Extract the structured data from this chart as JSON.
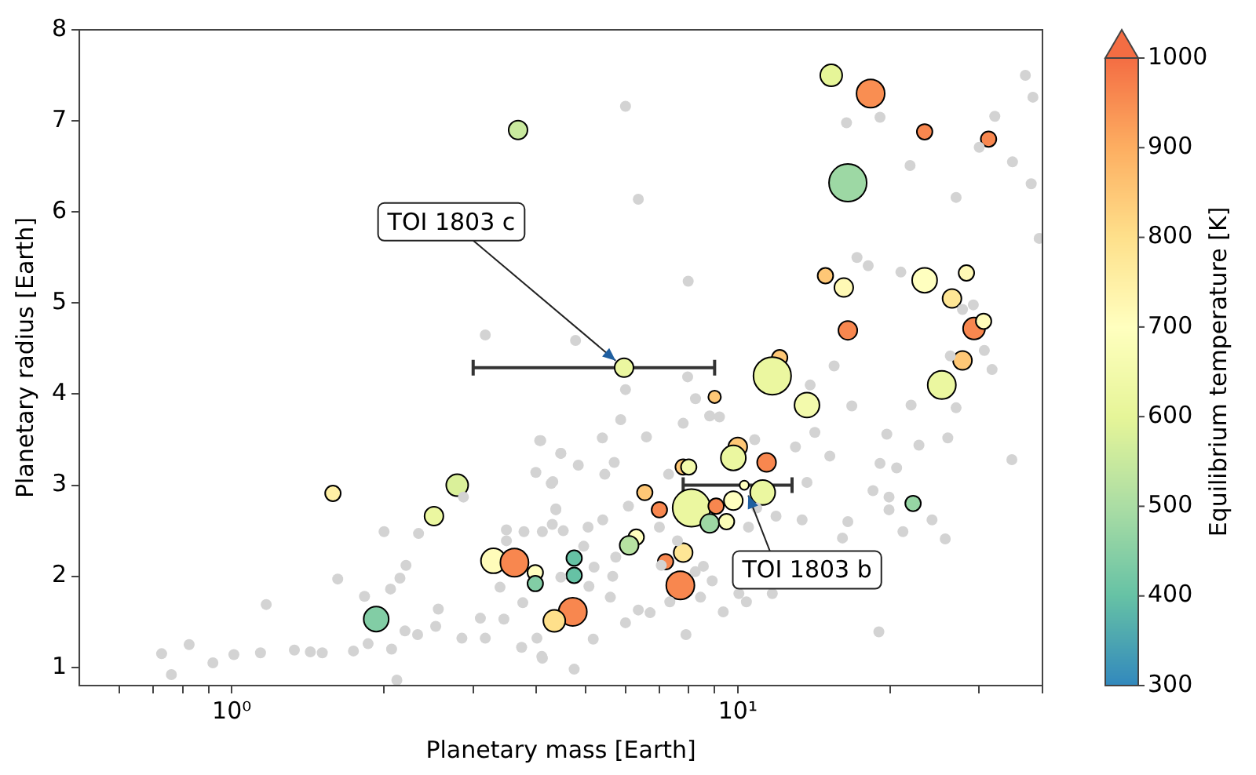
{
  "chart_data": {
    "type": "scatter",
    "xlabel": "Planetary mass [Earth]",
    "ylabel": "Planetary radius [Earth]",
    "clabel": "Equilibrium temperature [K]",
    "log": "x",
    "marker": "circle",
    "xlim": [
      0.5,
      40
    ],
    "ylim": [
      0.8,
      8
    ],
    "xticks": [
      {
        "value": 0.6,
        "label": null
      },
      {
        "value": 0.7,
        "label": null
      },
      {
        "value": 0.8,
        "label": null
      },
      {
        "value": 0.9,
        "label": null
      },
      {
        "value": 1,
        "label": "10⁰"
      },
      {
        "value": 2,
        "label": null
      },
      {
        "value": 3,
        "label": null
      },
      {
        "value": 4,
        "label": null
      },
      {
        "value": 5,
        "label": null
      },
      {
        "value": 6,
        "label": null
      },
      {
        "value": 7,
        "label": null
      },
      {
        "value": 8,
        "label": null
      },
      {
        "value": 9,
        "label": null
      },
      {
        "value": 10,
        "label": "10¹"
      },
      {
        "value": 20,
        "label": null
      },
      {
        "value": 30,
        "label": null
      },
      {
        "value": 40,
        "label": null
      }
    ],
    "yticks": [
      1,
      2,
      3,
      4,
      5,
      6,
      7,
      8
    ],
    "clim": [
      300,
      1000
    ],
    "cticks": [
      300,
      400,
      500,
      600,
      700,
      800,
      900,
      1000
    ],
    "annotations": [
      {
        "text": "TOI 1803 c",
        "x": 5.96,
        "y": 4.29
      },
      {
        "text": "TOI 1803 b",
        "x": 10.3,
        "y": 3.0
      }
    ],
    "series": [
      {
        "type": "scatter",
        "color": "#d3d3d3",
        "x": [
          0.727,
          0.824,
          0.76,
          0.918,
          1.01,
          1.14,
          1.17,
          1.33,
          1.43,
          1.51,
          1.62,
          1.74,
          1.83,
          2.0,
          2.06,
          2.15,
          2.21,
          1.86,
          2.07,
          2.2,
          2.33,
          2.34,
          2.56,
          2.53,
          2.85,
          2.87,
          3.1,
          3.17,
          3.39,
          3.49,
          3.49,
          3.78,
          3.76,
          3.99,
          4.08,
          4.28,
          4.37,
          4.47,
          3.74,
          4.11,
          4.01,
          3.45,
          2.12,
          6.0,
          7.96,
          8.25,
          5.87,
          7.8,
          8.8,
          9.2,
          4.06,
          4.47,
          4.84,
          5.4,
          5.7,
          6.6,
          7.3,
          10.8,
          13.0,
          14.2,
          15.2,
          16.8,
          22.0,
          27.0,
          19.7,
          22.8,
          26.0,
          19.1,
          20.6,
          18.5,
          19.9,
          19.9,
          21.2,
          24.2,
          25.7,
          34.8,
          13.7,
          13.4,
          16.5,
          16.1,
          19.0,
          4.31,
          4.37,
          4.11,
          4.52,
          5.06,
          5.41,
          6.08,
          7.0,
          5.74,
          5.2,
          4.47,
          5.08,
          5.6,
          6.36,
          6.0,
          6.71,
          7.34,
          7.9,
          8.44,
          9.36,
          10.4,
          11.7,
          10.05,
          8.9,
          8.24,
          7.6,
          8.55,
          5.18,
          4.75,
          4.1,
          7.06,
          10.5,
          11.9,
          10.9,
          5.46,
          4.3,
          4.96,
          5.66,
          6.0,
          6.36,
          7.98,
          4.78,
          16.4,
          19.1,
          21.9,
          27.0,
          32.2,
          30.0,
          34.9,
          37.0,
          38.3,
          38.0,
          39.4,
          17.2,
          18.1,
          21.0,
          27.8,
          29.2,
          30.7,
          31.8,
          26.3,
          15.5,
          13.9,
          3.17
        ],
        "values": [
          1.15,
          1.25,
          0.92,
          1.05,
          1.14,
          1.16,
          1.69,
          1.19,
          1.17,
          1.16,
          1.97,
          1.18,
          1.78,
          2.49,
          1.86,
          1.98,
          2.12,
          1.26,
          1.2,
          1.4,
          1.36,
          2.47,
          1.64,
          1.45,
          1.32,
          2.87,
          1.54,
          1.32,
          1.88,
          2.51,
          2.39,
          2.49,
          1.71,
          3.14,
          3.49,
          3.02,
          2.73,
          3.35,
          1.22,
          1.1,
          1.32,
          1.53,
          0.86,
          4.05,
          4.19,
          3.95,
          3.72,
          3.68,
          3.76,
          3.75,
          3.49,
          3.35,
          3.22,
          3.52,
          3.25,
          3.53,
          3.12,
          3.5,
          3.42,
          3.58,
          3.32,
          3.87,
          3.88,
          3.85,
          3.56,
          3.44,
          3.52,
          3.24,
          3.19,
          2.94,
          2.87,
          2.73,
          2.49,
          2.62,
          2.41,
          3.28,
          3.03,
          2.62,
          2.6,
          2.42,
          1.39,
          3.04,
          2.74,
          2.49,
          2.5,
          2.54,
          2.62,
          2.77,
          2.54,
          2.21,
          2.1,
          1.99,
          1.89,
          1.77,
          1.63,
          1.49,
          1.6,
          1.72,
          1.36,
          1.77,
          1.61,
          1.72,
          1.81,
          1.81,
          1.95,
          2.05,
          2.39,
          2.11,
          1.31,
          0.98,
          1.12,
          2.12,
          2.54,
          2.66,
          2.75,
          3.12,
          2.57,
          2.33,
          2.0,
          7.16,
          6.14,
          5.24,
          4.59,
          6.98,
          7.04,
          6.51,
          6.16,
          7.05,
          6.71,
          6.55,
          7.5,
          7.26,
          6.31,
          5.71,
          5.5,
          5.41,
          5.34,
          4.93,
          4.98,
          4.48,
          4.27,
          4.42,
          4.31,
          4.1,
          4.65
        ]
      },
      {
        "type": "bubble",
        "x": [
          5.96,
          10.3,
          3.68,
          15.3,
          18.3,
          23.4,
          31.3,
          16.5,
          14.9,
          16.2,
          23.4,
          28.3,
          26.5,
          16.5,
          29.3,
          30.6,
          27.8,
          25.3,
          12.1,
          11.7,
          13.7,
          9.0,
          10.0,
          9.8,
          11.4,
          7.8,
          8.0,
          11.2,
          6.55,
          8.1,
          7.0,
          9.06,
          9.8,
          8.8,
          9.5,
          6.3,
          6.1,
          4.75,
          4.75,
          3.98,
          3.98,
          7.8,
          7.2,
          7.7,
          4.72,
          4.34,
          22.2,
          1.585,
          2.79,
          2.51,
          3.29,
          3.62,
          1.93
        ],
        "values": [
          4.29,
          3.0,
          6.9,
          7.5,
          7.3,
          6.88,
          6.8,
          6.32,
          5.3,
          5.17,
          5.25,
          5.33,
          5.05,
          4.7,
          4.72,
          4.8,
          4.37,
          4.1,
          4.4,
          4.2,
          3.88,
          3.97,
          3.42,
          3.3,
          3.25,
          3.2,
          3.2,
          2.92,
          2.92,
          2.75,
          2.73,
          2.77,
          2.83,
          2.58,
          2.6,
          2.43,
          2.34,
          2.2,
          2.01,
          2.04,
          1.92,
          2.26,
          2.16,
          1.9,
          1.61,
          1.51,
          2.8,
          2.91,
          3.0,
          2.66,
          2.17,
          2.15,
          1.53
        ],
        "sizes": [
          0.25,
          0.06,
          0.25,
          0.34,
          0.56,
          0.17,
          0.17,
          1,
          0.17,
          0.25,
          0.44,
          0.17,
          0.25,
          0.25,
          0.34,
          0.17,
          0.25,
          0.56,
          0.17,
          1,
          0.44,
          0.11,
          0.25,
          0.44,
          0.25,
          0.17,
          0.17,
          0.44,
          0.17,
          1,
          0.17,
          0.17,
          0.25,
          0.25,
          0.17,
          0.17,
          0.25,
          0.17,
          0.17,
          0.17,
          0.17,
          0.25,
          0.17,
          0.56,
          0.56,
          0.34,
          0.17,
          0.17,
          0.34,
          0.25,
          0.44,
          0.56,
          0.44
        ],
        "colors": [
          "#ebf7a0",
          "#ffffbf",
          "#c9e99e",
          "#e6f598",
          "#f98e52",
          "#f8874f",
          "#f8874f",
          "#9dd8a4",
          "#fec776",
          "#fff9b5",
          "#ffffbf",
          "#fff9b5",
          "#fee695",
          "#f8874f",
          "#f8874f",
          "#fffcba",
          "#fec776",
          "#ebf7a0",
          "#fec776",
          "#ebf7a0",
          "#f3faac",
          "#fec776",
          "#fec776",
          "#ebf7a0",
          "#f8874f",
          "#fec776",
          "#f3faac",
          "#ebf7a0",
          "#fec776",
          "#ebf7a0",
          "#f8874f",
          "#f8874f",
          "#ffffbf",
          "#9dd8a4",
          "#fafdb7",
          "#ffffbf",
          "#b7e2a2",
          "#66c2a5",
          "#66c2a5",
          "#ffffbf",
          "#82cda5",
          "#fee695",
          "#f8874f",
          "#f8874f",
          "#f8874f",
          "#fee08b",
          "#96d5a4",
          "#fff0a5",
          "#daf09a",
          "#ebf7a0",
          "#fffcba",
          "#f8874f",
          "#82cda5"
        ],
        "cvalues": [
          620,
          700,
          550,
          600,
          950,
          960,
          960,
          480,
          850,
          720,
          700,
          720,
          780,
          960,
          960,
          710,
          850,
          620,
          850,
          620,
          650,
          850,
          850,
          620,
          960,
          850,
          650,
          620,
          850,
          620,
          960,
          960,
          700,
          480,
          680,
          700,
          520,
          400,
          400,
          700,
          440,
          780,
          960,
          960,
          960,
          800,
          470,
          750,
          580,
          620,
          710,
          960,
          440
        ],
        "xerrors": [
          [
            3.0,
            9.0
          ],
          [
            7.8,
            12.8
          ],
          null,
          null,
          null,
          null,
          null,
          null,
          null,
          null,
          null,
          null,
          null,
          null,
          null,
          null,
          null,
          null,
          null,
          null,
          null,
          null,
          null,
          null,
          null,
          null,
          null,
          null,
          null,
          null,
          null,
          null,
          null,
          null,
          null,
          null,
          null,
          null,
          null,
          null,
          null,
          null,
          null,
          null,
          null,
          null,
          null,
          null,
          null,
          null,
          null,
          null,
          null
        ]
      }
    ]
  }
}
